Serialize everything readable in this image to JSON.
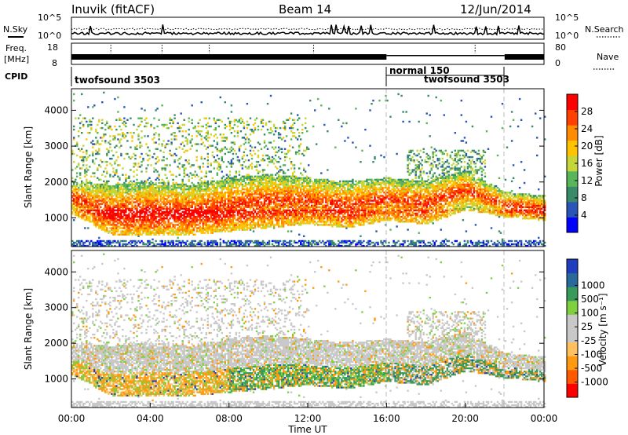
{
  "header": {
    "title": "Inuvik (fitACF)",
    "beam": "Beam 14",
    "date": "12/Jun/2014"
  },
  "noise_panel": {
    "left_label": "N.Sky",
    "right_label": "N.Search",
    "left_ticks": [
      "10^5",
      "10^0"
    ],
    "right_ticks": [
      "10^5",
      "10^0"
    ]
  },
  "freq_panel": {
    "left_label_1": "Freq.",
    "left_label_2": "[MHz]",
    "right_label": "Nave",
    "left_ticks": [
      "18",
      "8"
    ],
    "right_ticks": [
      "80",
      "0"
    ]
  },
  "cpid_panel": {
    "label": "CPID",
    "segments": [
      "twofsound 3503",
      "normal 150",
      "twofsound 3503"
    ]
  },
  "colors": {
    "power_scale": [
      "#0000ff",
      "#2a55b8",
      "#3a8a6a",
      "#59b55a",
      "#c4d63a",
      "#ffc400",
      "#ff8c00",
      "#ff4000",
      "#ff0000"
    ],
    "velocity_scale": [
      "#ff0000",
      "#ff5a00",
      "#ff9a10",
      "#ffc060",
      "#c8c8c8",
      "#c8c8c8",
      "#7fcf3f",
      "#3a9a5a",
      "#2a6a9a",
      "#1f3fbf"
    ]
  },
  "chart_data": [
    {
      "type": "heatmap",
      "name": "power",
      "ylabel": "Slant Range [km]",
      "ytick_labels": [
        "1000",
        "2000",
        "3000",
        "4000"
      ],
      "ylim": [
        200,
        4600
      ],
      "xlabel": "",
      "colorbar_label": "Power [dB]",
      "colorbar_ticks": [
        "4",
        "8",
        "12",
        "16",
        "20",
        "24",
        "28"
      ],
      "colorbar_range": [
        0,
        32
      ],
      "x_range_hours": [
        0,
        24
      ],
      "band_profile": [
        {
          "t": 0,
          "lo": 1100,
          "hi": 2000
        },
        {
          "t": 2,
          "lo": 500,
          "hi": 1900
        },
        {
          "t": 4,
          "lo": 500,
          "hi": 2000
        },
        {
          "t": 6,
          "lo": 500,
          "hi": 1900
        },
        {
          "t": 8,
          "lo": 600,
          "hi": 2100
        },
        {
          "t": 10,
          "lo": 700,
          "hi": 2200
        },
        {
          "t": 12,
          "lo": 800,
          "hi": 2100
        },
        {
          "t": 14,
          "lo": 700,
          "hi": 2000
        },
        {
          "t": 16,
          "lo": 900,
          "hi": 2100
        },
        {
          "t": 18,
          "lo": 800,
          "hi": 2000
        },
        {
          "t": 20,
          "lo": 1200,
          "hi": 2300
        },
        {
          "t": 22,
          "lo": 1000,
          "hi": 1700
        },
        {
          "t": 24,
          "lo": 900,
          "hi": 1600
        }
      ]
    },
    {
      "type": "heatmap",
      "name": "velocity",
      "ylabel": "Slant Range [km]",
      "ytick_labels": [
        "1000",
        "2000",
        "3000",
        "4000"
      ],
      "ylim": [
        200,
        4600
      ],
      "xlabel": "Time UT",
      "xtick_labels": [
        "00:00",
        "04:00",
        "08:00",
        "12:00",
        "16:00",
        "20:00",
        "00:00"
      ],
      "colorbar_label": "Velocity [m s⁻¹]",
      "colorbar_ticks": [
        "-1000",
        "-500",
        "-100",
        "-25",
        "25",
        "100",
        "500",
        "1000"
      ],
      "x_range_hours": [
        0,
        24
      ]
    }
  ]
}
